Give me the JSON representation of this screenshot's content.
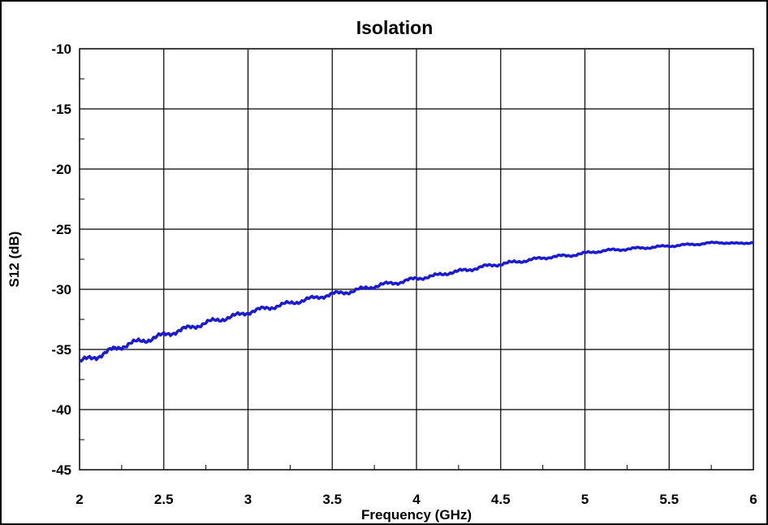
{
  "chart_data": {
    "type": "line",
    "title": "Isolation",
    "xlabel": "Frequency (GHz)",
    "ylabel": "S12 (dB)",
    "xlim": [
      2,
      6
    ],
    "ylim": [
      -45,
      -10
    ],
    "x_ticks": [
      2,
      2.5,
      3,
      3.5,
      4,
      4.5,
      5,
      5.5,
      6
    ],
    "x_tick_labels": [
      "2",
      "2.5",
      "3",
      "3.5",
      "4",
      "4.5",
      "5",
      "5.5",
      "6"
    ],
    "y_ticks": [
      -10,
      -15,
      -20,
      -25,
      -30,
      -35,
      -40,
      -45
    ],
    "y_tick_labels": [
      "-10",
      "-15",
      "-20",
      "-25",
      "-30",
      "-35",
      "-40",
      "-45"
    ],
    "grid": true,
    "line_color": "#1a1ad6",
    "series": [
      {
        "x": [
          2.0,
          2.1,
          2.2,
          2.3,
          2.4,
          2.5,
          2.6,
          2.7,
          2.8,
          2.9,
          3.0,
          3.1,
          3.2,
          3.3,
          3.4,
          3.5,
          3.6,
          3.7,
          3.8,
          3.9,
          4.0,
          4.1,
          4.2,
          4.3,
          4.4,
          4.5,
          4.6,
          4.7,
          4.8,
          4.9,
          5.0,
          5.1,
          5.2,
          5.3,
          5.4,
          5.5,
          5.6,
          5.7,
          5.8,
          5.9,
          6.0
        ],
        "y": [
          -36.0,
          -35.6,
          -35.0,
          -34.5,
          -34.2,
          -33.8,
          -33.4,
          -33.0,
          -32.6,
          -32.3,
          -31.9,
          -31.6,
          -31.3,
          -31.0,
          -30.7,
          -30.4,
          -30.2,
          -29.9,
          -29.6,
          -29.4,
          -29.1,
          -28.9,
          -28.6,
          -28.4,
          -28.1,
          -27.9,
          -27.7,
          -27.5,
          -27.3,
          -27.2,
          -27.0,
          -26.8,
          -26.7,
          -26.6,
          -26.5,
          -26.4,
          -26.3,
          -26.2,
          -26.1,
          -26.2,
          -26.1
        ]
      }
    ]
  }
}
